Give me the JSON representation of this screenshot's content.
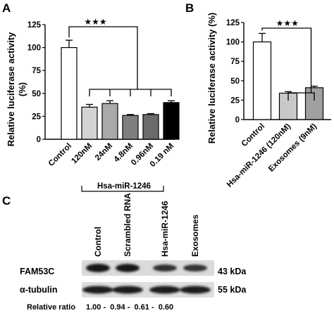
{
  "panels": {
    "a": "A",
    "b": "B",
    "c": "C"
  },
  "chart_data": [
    {
      "panel": "A",
      "type": "bar",
      "ylabel": "Relative luciferase activity (%)",
      "ylabel_lines": [
        "Relative luciferase activity",
        "(%)"
      ],
      "ylim": [
        0,
        125
      ],
      "yticks": [
        0,
        25,
        50,
        75,
        100,
        125
      ],
      "categories": [
        "Control",
        "120nM",
        "24nM",
        "4.8nM",
        "0.96nM",
        "0.19 nM"
      ],
      "values": [
        100,
        35,
        39,
        26,
        27,
        40
      ],
      "errors": [
        8,
        3,
        3,
        1,
        1,
        2
      ],
      "colors": [
        "#ffffff",
        "#d3d3d3",
        "#a9a9a9",
        "#7f7f7f",
        "#6b6b6b",
        "#000000"
      ],
      "group_label": "Hsa-miR-1246",
      "significance": "★★★"
    },
    {
      "panel": "B",
      "type": "bar",
      "ylabel": "Relative luciferase activity (%)",
      "ylim": [
        0,
        125
      ],
      "yticks": [
        0,
        25,
        50,
        75,
        100,
        125
      ],
      "categories": [
        "Control",
        "Hsa-miR-1246 (120nM)",
        "Exosomes (9nM)"
      ],
      "values": [
        100,
        34,
        41
      ],
      "errors": [
        11,
        2,
        2
      ],
      "colors": [
        "#ffffff",
        "#c9c9c9",
        "#a0a0a0"
      ],
      "significance": "★★★"
    }
  ],
  "blot": {
    "lanes": [
      "Control",
      "Scrambled RNA",
      "Hsa-miR-1246",
      "Exosomes"
    ],
    "rows": [
      {
        "label": "FAM53C",
        "size": "43 kDa"
      },
      {
        "label": "α-tubulin",
        "size": "55 kDa"
      }
    ],
    "ratio_label": "Relative ratio",
    "ratio_text": "1.00 -  0.94 -  0.61 -  0.60",
    "ratios": [
      1.0,
      0.94,
      0.61,
      0.6
    ]
  }
}
